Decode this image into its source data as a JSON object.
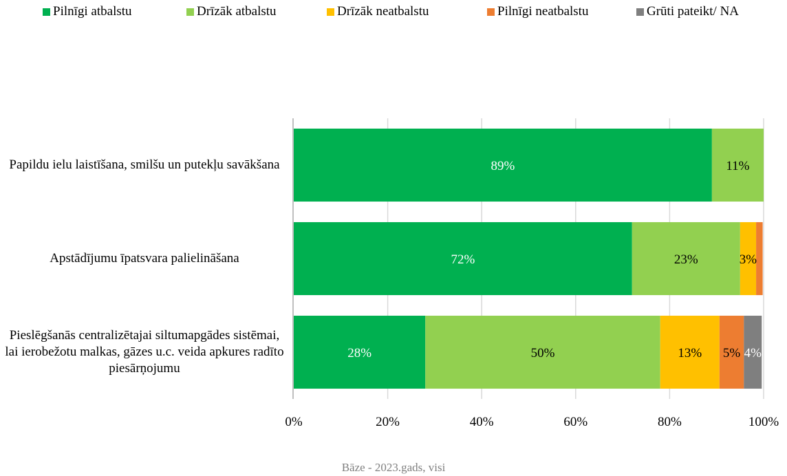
{
  "chart_data": {
    "type": "bar",
    "orientation": "horizontal",
    "stacked": true,
    "categories": [
      "Papildu ielu laistīšana, smilšu un putekļu savākšana",
      "Apstādījumu īpatsvara palielināšana",
      "Pieslēgšanās centralizētajai siltumapgādes sistēmai, lai ierobežotu malkas, gāzes u.c. veida apkures radīto piesārņojumu"
    ],
    "series": [
      {
        "name": "Pilnīgi atbalstu",
        "color": "#00b050",
        "values": [
          89,
          72,
          28
        ],
        "labels": [
          "89%",
          "72%",
          "28%"
        ],
        "label_color": "#ffffff"
      },
      {
        "name": "Drīzāk atbalstu",
        "color": "#92d050",
        "values": [
          11,
          23,
          50
        ],
        "labels": [
          "11%",
          "23%",
          "50%"
        ],
        "label_color": "#000000"
      },
      {
        "name": "Drīzāk neatbalstu",
        "color": "#ffc000",
        "values": [
          0,
          3.4,
          12.6
        ],
        "labels": [
          "",
          "3%",
          "13%"
        ],
        "label_color": "#000000"
      },
      {
        "name": "Pilnīgi neatbalstu",
        "color": "#ed7d31",
        "values": [
          0,
          1.4,
          5.2
        ],
        "labels": [
          "",
          "",
          "5%"
        ],
        "label_color": "#000000"
      },
      {
        "name": "Grūti pateikt/ NA",
        "color": "#7f7f7f",
        "values": [
          0,
          0,
          3.8
        ],
        "labels": [
          "",
          "",
          "4%"
        ],
        "label_color": "#ffffff"
      }
    ],
    "xlim": [
      0,
      100
    ],
    "x_ticks": [
      "0%",
      "20%",
      "40%",
      "60%",
      "80%",
      "100%"
    ],
    "grid": true,
    "legend_position": "top"
  },
  "footnote": "Bāze - 2023.gads, visi"
}
